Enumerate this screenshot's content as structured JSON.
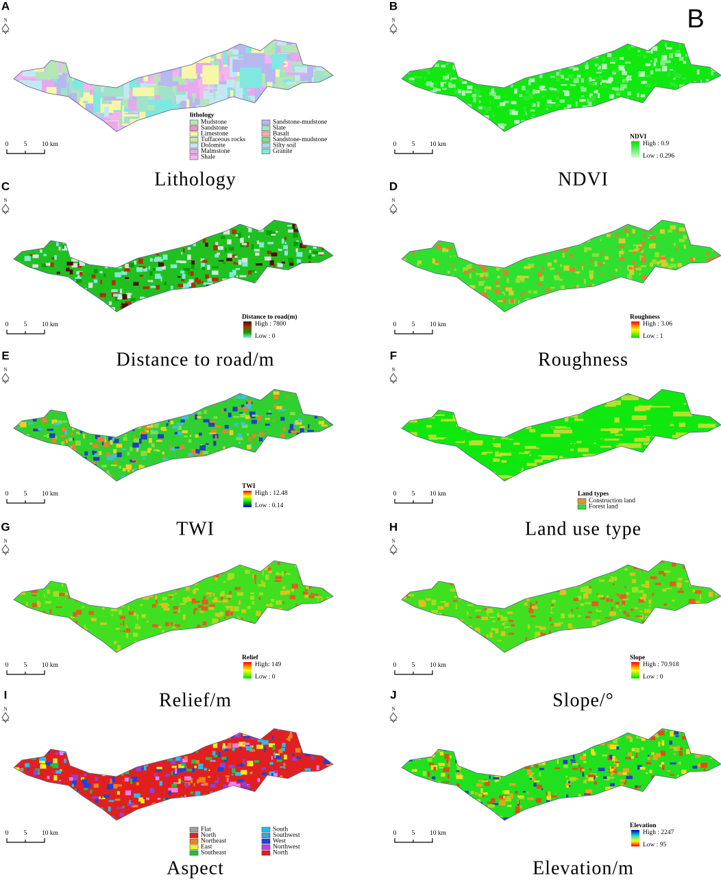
{
  "figure": {
    "stamp": "B",
    "north_label": "N",
    "scale_labels": [
      "0",
      "5",
      "10 km"
    ],
    "panels": [
      {
        "letter": "A",
        "caption": "Lithology",
        "map_colors": [
          "#f4b4f0",
          "#b5e6b5",
          "#9fe3c8",
          "#f7f7a8",
          "#c4e8f2",
          "#e8a8f0",
          "#b8b8f0",
          "#7fe8e0"
        ],
        "legend": {
          "title": "lithology",
          "items": [
            {
              "label": "Mudstone",
              "color": "#b5e6b5"
            },
            {
              "label": "Sandstone",
              "color": "#f090c8"
            },
            {
              "label": "Limestone",
              "color": "#f7f7a8"
            },
            {
              "label": "Tuffaceous rocks",
              "color": "#c8e89a"
            },
            {
              "label": "Dolomite",
              "color": "#c4e8f2"
            },
            {
              "label": "Malmstone",
              "color": "#e8a8f0"
            },
            {
              "label": "Shale",
              "color": "#f4b4f0"
            },
            {
              "label": "Sandstone-mudstone",
              "color": "#b8b8f0"
            },
            {
              "label": "Slate",
              "color": "#9fe3c8"
            },
            {
              "label": "Basalt",
              "color": "#f4b0a8"
            },
            {
              "label": "Sandstone-mudstone",
              "color": "#88d888"
            },
            {
              "label": "Silty soil",
              "color": "#a8d8f0"
            },
            {
              "label": "Granite",
              "color": "#7fe8e0"
            }
          ]
        }
      },
      {
        "letter": "B",
        "caption": "NDVI",
        "map_colors": [
          "#10e810",
          "#30e830",
          "#90f090",
          "#c8f5c8"
        ],
        "legend": {
          "title": "NDVI",
          "high": "High : 0.9",
          "low": "Low : 0.296",
          "colors": [
            "#00e000",
            "#d0f8d0"
          ]
        }
      },
      {
        "letter": "C",
        "caption": "Distance to road/m",
        "map_colors": [
          "#20c020",
          "#80ecd8",
          "#c8f0e0",
          "#00a000",
          "#b03000",
          "#501000",
          "#e0e0e0"
        ],
        "legend": {
          "title": "Distance to road(m)",
          "high": "High : 7800",
          "low": "Low : 0",
          "colors": [
            "#3a1a00",
            "#b03000",
            "#00a000",
            "#90f0e0"
          ]
        }
      },
      {
        "letter": "D",
        "caption": "Roughness",
        "map_colors": [
          "#30e030",
          "#30e030",
          "#90e030",
          "#d0d030",
          "#e08030"
        ],
        "legend": {
          "title": "Roughness",
          "high": "High : 3.06",
          "low": "Low : 1",
          "colors": [
            "#ff0000",
            "#ffff00",
            "#00e000"
          ]
        }
      },
      {
        "letter": "E",
        "caption": "TWI",
        "map_colors": [
          "#30d030",
          "#f0d020",
          "#f08020",
          "#2040c0",
          "#40c0e0",
          "#80e040"
        ],
        "legend": {
          "title": "TWI",
          "high": "High : 12.48",
          "low": "Low : 0.14",
          "colors": [
            "#ff0000",
            "#ffff00",
            "#00e000",
            "#0000c0"
          ]
        }
      },
      {
        "letter": "F",
        "caption": "Land use type",
        "map_colors": [
          "#10e810",
          "#10e810",
          "#10e810",
          "#c8e030"
        ],
        "legend": {
          "title": "Land types",
          "items": [
            {
              "label": "Construction land",
              "color": "#e89030"
            },
            {
              "label": "Forest land",
              "color": "#30e030"
            }
          ]
        }
      },
      {
        "letter": "G",
        "caption": "Relief/m",
        "map_colors": [
          "#40e020",
          "#a0e020",
          "#e0c020",
          "#e06020",
          "#40e020"
        ],
        "legend": {
          "title": "Relief",
          "high": "High: 149",
          "low": "Low : 0",
          "colors": [
            "#ff0000",
            "#ffff00",
            "#00e000"
          ]
        }
      },
      {
        "letter": "H",
        "caption": "Slope/°",
        "map_colors": [
          "#40e020",
          "#a0e020",
          "#e0c020",
          "#e06020",
          "#40e020"
        ],
        "legend": {
          "title": "Slope",
          "high": "High : 70.918",
          "low": "Low : 0",
          "colors": [
            "#ff0000",
            "#ffff00",
            "#00e000"
          ]
        }
      },
      {
        "letter": "I",
        "caption": "Aspect",
        "map_colors": [
          "#e02020",
          "#f080f0",
          "#9040e0",
          "#20c0f0",
          "#20c040",
          "#f0f020",
          "#f08020",
          "#2040e0"
        ],
        "legend": {
          "items": [
            {
              "label": "Flat",
              "color": "#a0a0a0"
            },
            {
              "label": "North",
              "color": "#e02020"
            },
            {
              "label": "Northeast",
              "color": "#f08020"
            },
            {
              "label": "East",
              "color": "#f0f020"
            },
            {
              "label": "Southeast",
              "color": "#20c040"
            },
            {
              "label": "South",
              "color": "#20c0f0"
            },
            {
              "label": "Southwest",
              "color": "#40a0e0"
            },
            {
              "label": "West",
              "color": "#2040e0"
            },
            {
              "label": "Northwest",
              "color": "#c040e0"
            },
            {
              "label": "North",
              "color": "#e02020"
            }
          ]
        }
      },
      {
        "letter": "J",
        "caption": "Elevation/m",
        "map_colors": [
          "#20e020",
          "#a0e020",
          "#f0e020",
          "#f0a020",
          "#e05010",
          "#2040c0"
        ],
        "legend": {
          "title": "Elevation",
          "high": "High : 2247",
          "low": "Low : 95",
          "colors": [
            "#0000a0",
            "#00e0e0",
            "#ffff00",
            "#ff0000"
          ]
        }
      }
    ]
  }
}
